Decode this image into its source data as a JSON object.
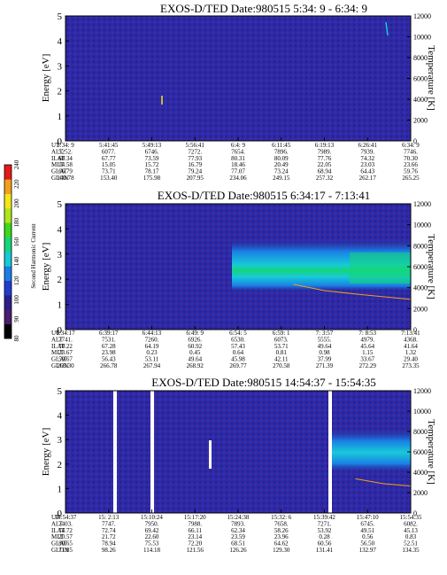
{
  "panels": [
    {
      "title": "EXOS-D/TED   Date:980515  5:34: 9 - 6:34: 9",
      "ylabel": "Energy [eV]",
      "y2label": "Temperature [K]",
      "yticks": [
        "0",
        "1",
        "2",
        "3",
        "4",
        "5"
      ],
      "y2ticks": [
        "0",
        "2000",
        "4000",
        "6000",
        "8000",
        "10000",
        "12000"
      ],
      "row_labels": [
        "UT",
        "ALT",
        "ILAT",
        "MLT",
        "GLAT",
        "GLON"
      ],
      "columns": [
        [
          "5:34: 9",
          "5252.",
          "60.34",
          "14.58",
          "66.79",
          "140.78"
        ],
        [
          "5:41:45",
          "6077.",
          "67.77",
          "15.05",
          "73.71",
          "153.40"
        ],
        [
          "5:49:13",
          "6746.",
          "73.59",
          "15.72",
          "78.17",
          "175.98"
        ],
        [
          "5:56:41",
          "7272.",
          "77.93",
          "16.79",
          "79.24",
          "207.95"
        ],
        [
          "6:4: 9",
          "7654.",
          "80.31",
          "18.46",
          "77.07",
          "234.06"
        ],
        [
          "6:11:45",
          "7896.",
          "80.09",
          "20.49",
          "73.24",
          "249.15"
        ],
        [
          "6:19:13",
          "7989.",
          "77.76",
          "22.05",
          "68.94",
          "257.32"
        ],
        [
          "6:26:41",
          "7939.",
          "74.32",
          "23.03",
          "64.43",
          "262.17"
        ],
        [
          "6:34: 9",
          "7746.",
          "70.30",
          "23.66",
          "59.76",
          "265.25"
        ]
      ]
    },
    {
      "title": "EXOS-D/TED   Date:980515  6:34:17 - 7:13:41",
      "ylabel": "Energy [eV]",
      "y2label": "Temperature [K]",
      "yticks": [
        "0",
        "1",
        "2",
        "3",
        "4",
        "5"
      ],
      "y2ticks": [
        "0",
        "2000",
        "4000",
        "6000",
        "8000",
        "10000",
        "12000"
      ],
      "row_labels": [
        "UT",
        "ALT",
        "ILAT",
        "MLT",
        "GLAT",
        "GLON"
      ],
      "columns": [
        [
          "6:34:17",
          "7741.",
          "70.22",
          "23.67",
          "59.67",
          "265.30"
        ],
        [
          "6:39:17",
          "7531.",
          "67.28",
          "23.98",
          "56.43",
          "266.78"
        ],
        [
          "6:44:13",
          "7260.",
          "64.19",
          "0.23",
          "53.11",
          "267.94"
        ],
        [
          "6:49: 9",
          "6926.",
          "60.92",
          "0.45",
          "49.64",
          "268.92"
        ],
        [
          "6:54: 5",
          "6530.",
          "57.43",
          "0.64",
          "45.98",
          "269.77"
        ],
        [
          "6:59: 1",
          "6073.",
          "53.71",
          "0.81",
          "42.11",
          "270.58"
        ],
        [
          "7: 3:57",
          "5555.",
          "49.64",
          "0.98",
          "37.99",
          "271.39"
        ],
        [
          "7: 8:53",
          "4979.",
          "45.64",
          "1.15",
          "33.67",
          "272.29"
        ],
        [
          "7:13:41",
          "4368.",
          "41.64",
          "1.32",
          "29.40",
          "273.35"
        ]
      ]
    },
    {
      "title": "EXOS-D/TED   Date:980515  14:54:37 - 15:54:35",
      "ylabel": "Energy [eV]",
      "y2label": "Temperature [K]",
      "yticks": [
        "0",
        "1",
        "2",
        "3",
        "4",
        "5"
      ],
      "y2ticks": [
        "0",
        "2000",
        "4000",
        "6000",
        "8000",
        "10000",
        "12000"
      ],
      "row_labels": [
        "UT",
        "ALT",
        "ILAT",
        "MLT",
        "GLAT",
        "GLON"
      ],
      "columns": [
        [
          "14:54:37",
          "7403.",
          "74.72",
          "20.57",
          "80.65",
          "71.85"
        ],
        [
          "15: 2:13",
          "7747.",
          "72.74",
          "21.72",
          "78.94",
          "98.26"
        ],
        [
          "15:10:24",
          "7950.",
          "69.42",
          "22.60",
          "75.53",
          "114.18"
        ],
        [
          "15:17:20",
          "7988.",
          "66.11",
          "23.14",
          "72.20",
          "121.56"
        ],
        [
          "15:24:38",
          "7893.",
          "62.34",
          "23.59",
          "68.51",
          "126.26"
        ],
        [
          "15:32: 6",
          "7658.",
          "58.26",
          "23.96",
          "64.62",
          "129.30"
        ],
        [
          "15:39:42",
          "7271.",
          "53.92",
          "0.28",
          "60.56",
          "131.41"
        ],
        [
          "15:47:10",
          "6745.",
          "49.51",
          "0.56",
          "56.50",
          "132.97"
        ],
        [
          "15:54:35",
          "6082.",
          "45.13",
          "0.83",
          "52.51",
          "134.35"
        ]
      ]
    }
  ],
  "colorbar": {
    "label": "Second Harmonic Current",
    "ticks": [
      "80",
      "90",
      "100",
      "120",
      "140",
      "160",
      "180",
      "200",
      "220",
      "240"
    ],
    "colors": [
      "#000000",
      "#4a1d6e",
      "#2b1f8c",
      "#1f3ed0",
      "#1a7fe6",
      "#18c9d8",
      "#14d67a",
      "#3ad91c",
      "#b0e61a",
      "#f2e81a",
      "#f2a01a",
      "#e41a1a"
    ]
  },
  "chart_data": [
    {
      "type": "heatmap",
      "title": "EXOS-D/TED   Date:980515  5:34: 9 - 6:34: 9",
      "ylabel": "Energy [eV]",
      "y2label": "Temperature [K]",
      "ylim": [
        0,
        5
      ],
      "y2lim": [
        0,
        12000
      ],
      "x_ticks": [
        "5:34: 9",
        "5:41:45",
        "5:49:13",
        "5:56:41",
        "6:4: 9",
        "6:11:45",
        "6:19:13",
        "6:26:41",
        "6:34: 9"
      ],
      "bands": []
    },
    {
      "type": "heatmap",
      "title": "EXOS-D/TED   Date:980515  6:34:17 - 7:13:41",
      "ylabel": "Energy [eV]",
      "y2label": "Temperature [K]",
      "ylim": [
        0,
        5
      ],
      "y2lim": [
        0,
        12000
      ],
      "x_ticks": [
        "6:34:17",
        "6:39:17",
        "6:44:13",
        "6:49: 9",
        "6:54: 5",
        "6:59: 1",
        "7: 3:57",
        "7: 8:53",
        "7:13:41"
      ],
      "bands": [
        {
          "x_start": 0.59,
          "x_end": 1.0,
          "energy_low": 1.4,
          "energy_high": 3.0,
          "peak_energy": 2.2
        }
      ],
      "trace_energy": [
        {
          "x": 0.66,
          "y": 1.8
        },
        {
          "x": 0.75,
          "y": 1.55
        },
        {
          "x": 0.85,
          "y": 1.4
        },
        {
          "x": 1.0,
          "y": 1.2
        }
      ]
    },
    {
      "type": "heatmap",
      "title": "EXOS-D/TED   Date:980515  14:54:37 - 15:54:35",
      "ylabel": "Energy [eV]",
      "y2label": "Temperature [K]",
      "ylim": [
        0,
        5
      ],
      "y2lim": [
        0,
        12000
      ],
      "x_ticks": [
        "14:54:37",
        "15: 2:13",
        "15:10:24",
        "15:17:20",
        "15:24:38",
        "15:32: 6",
        "15:39:42",
        "15:47:10",
        "15:54:35"
      ],
      "data_gaps": [
        0.22,
        0.32,
        0.8
      ],
      "bands": [
        {
          "x_start": 0.82,
          "x_end": 1.0,
          "energy_low": 1.8,
          "energy_high": 3.2,
          "peak_energy": 2.4
        }
      ],
      "trace_energy": [
        {
          "x": 0.84,
          "y": 1.4
        },
        {
          "x": 0.92,
          "y": 1.2
        },
        {
          "x": 1.0,
          "y": 1.1
        }
      ]
    }
  ]
}
